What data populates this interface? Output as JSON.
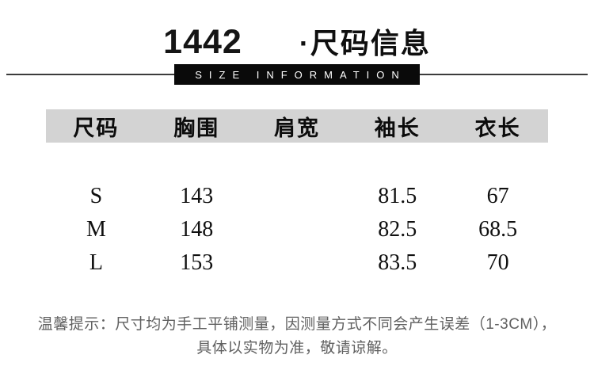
{
  "header": {
    "title_code": "1442",
    "title_text": "·尺码信息",
    "banner_text": "SIZE INFORMATION"
  },
  "table": {
    "headers": [
      "尺码",
      "胸围",
      "肩宽",
      "袖长",
      "衣长"
    ],
    "rows": [
      {
        "cells": [
          "S",
          "143",
          "",
          "81.5",
          "67"
        ]
      },
      {
        "cells": [
          "M",
          "148",
          "",
          "82.5",
          "68.5"
        ]
      },
      {
        "cells": [
          "L",
          "153",
          "",
          "83.5",
          "70"
        ]
      }
    ]
  },
  "footer": {
    "line1": "温馨提示：尺寸均为手工平铺测量，因测量方式不同会产生误差（1-3CM），",
    "line2": "具体以实物为准，敬请谅解。"
  },
  "colors": {
    "table_header_band": "#d3d3d3",
    "banner_background": "#0a0a0a",
    "banner_text": "#ffffff",
    "footer_text": "#606060",
    "rule_line": "#3c3c3c"
  }
}
